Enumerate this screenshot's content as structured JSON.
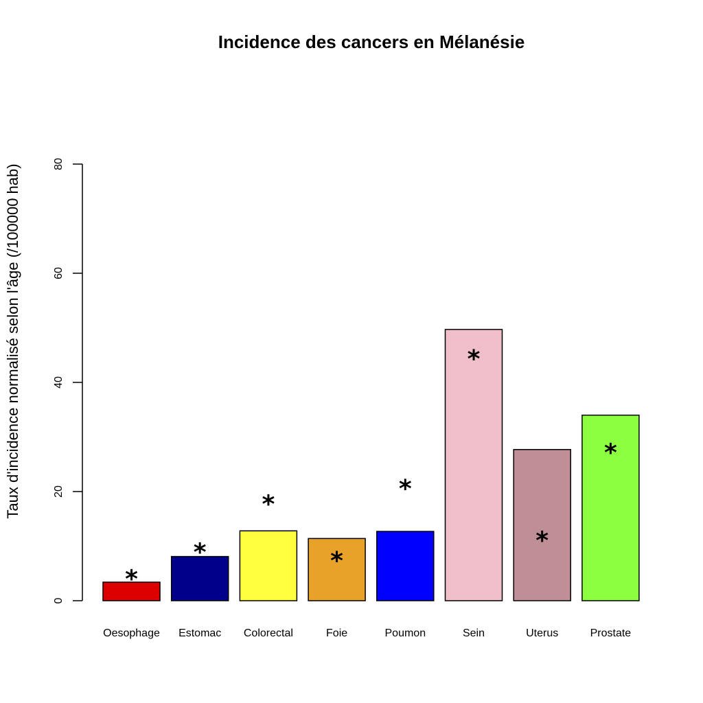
{
  "chart_data": {
    "type": "bar",
    "title": "Incidence des cancers en Mélanésie",
    "xlabel": "",
    "ylabel": "Taux d'incidence normalisé selon l'âge (/100000 hab)",
    "ylim": [
      0,
      80
    ],
    "yticks": [
      0,
      20,
      40,
      60,
      80
    ],
    "grid": false,
    "categories": [
      "Oesophage",
      "Estomac",
      "Colorectal",
      "Foie",
      "Poumon",
      "Sein",
      "Uterus",
      "Prostate"
    ],
    "values": [
      3.4,
      8.1,
      12.8,
      11.4,
      12.7,
      49.7,
      27.7,
      34.0
    ],
    "colors": [
      "#dd0000",
      "#00008b",
      "#ffff40",
      "#e8a22a",
      "#0000ff",
      "#f0bfca",
      "#bf8e97",
      "#8cff40"
    ],
    "markers": {
      "symbol": "*",
      "values": [
        5.5,
        10.4,
        19.2,
        8.8,
        22.0,
        45.8,
        12.5,
        28.6
      ]
    }
  }
}
